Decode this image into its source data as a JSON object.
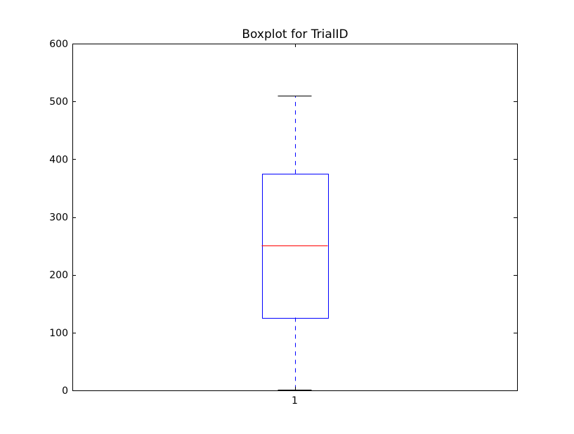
{
  "chart_data": {
    "type": "boxplot",
    "title": "Boxplot for TrialID",
    "xlabel": "",
    "ylabel": "",
    "categories": [
      "1"
    ],
    "ylim": [
      0,
      600
    ],
    "yticks": [
      0,
      100,
      200,
      300,
      400,
      500,
      600
    ],
    "y_tick_labels": [
      "0",
      "100",
      "200",
      "300",
      "400",
      "500",
      "600"
    ],
    "grid": false,
    "boxes": [
      {
        "category": "1",
        "whisker_low": 1,
        "q1": 126,
        "median": 251,
        "q3": 375,
        "whisker_high": 510
      }
    ],
    "colors": {
      "box": "#0000ff",
      "median": "#ff0000",
      "whisker": "#0000ff",
      "cap": "#000000",
      "axes": "#000000"
    }
  }
}
